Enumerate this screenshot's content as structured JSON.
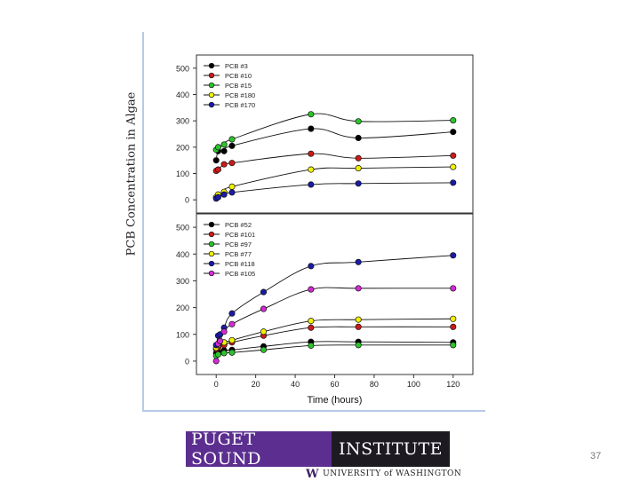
{
  "side_label": "PCB Concentration in Algae",
  "footer": {
    "banner_part1": "PUGET SOUND",
    "banner_part2": "INSTITUTE",
    "university_mark": "W",
    "university_name": "UNIVERSITY of WASHINGTON"
  },
  "page_number": "37",
  "chart_data": [
    {
      "type": "line",
      "xlabel": "",
      "ylabel": "",
      "xlim": [
        -10,
        130
      ],
      "ylim": [
        -50,
        550
      ],
      "yticks": [
        0,
        100,
        200,
        300,
        400,
        500
      ],
      "ytick_labels": [
        "0",
        "100",
        "200",
        "300",
        "400",
        "500"
      ],
      "legend_position": "top-left",
      "series": [
        {
          "name": "PCB #3",
          "color": "#000000",
          "x": [
            0,
            1,
            4,
            8,
            48,
            72,
            120
          ],
          "y": [
            150,
            185,
            185,
            205,
            270,
            235,
            258
          ]
        },
        {
          "name": "PCB #10",
          "color": "#cc1a1a",
          "x": [
            0,
            1,
            4,
            8,
            48,
            72,
            120
          ],
          "y": [
            110,
            115,
            135,
            140,
            175,
            158,
            168
          ]
        },
        {
          "name": "PCB #15",
          "color": "#2bc42b",
          "x": [
            0,
            1,
            4,
            8,
            48,
            72,
            120
          ],
          "y": [
            190,
            200,
            210,
            230,
            325,
            298,
            302
          ]
        },
        {
          "name": "PCB #180",
          "color": "#f2f200",
          "x": [
            0,
            1,
            4,
            8,
            48,
            72,
            120
          ],
          "y": [
            10,
            20,
            30,
            50,
            115,
            120,
            125
          ]
        },
        {
          "name": "PCB #170",
          "color": "#1a1aa6",
          "x": [
            0,
            1,
            4,
            8,
            48,
            72,
            120
          ],
          "y": [
            5,
            10,
            20,
            28,
            58,
            62,
            65
          ]
        }
      ]
    },
    {
      "type": "line",
      "xlabel": "Time (hours)",
      "ylabel": "",
      "xlim": [
        -10,
        130
      ],
      "ylim": [
        -50,
        550
      ],
      "xticks": [
        0,
        20,
        40,
        60,
        80,
        100,
        120
      ],
      "xtick_labels": [
        "0",
        "20",
        "40",
        "60",
        "80",
        "100",
        "120"
      ],
      "yticks": [
        0,
        100,
        200,
        300,
        400,
        500
      ],
      "ytick_labels": [
        "0",
        "100",
        "200",
        "300",
        "400",
        "500"
      ],
      "legend_position": "top-left",
      "series": [
        {
          "name": "PCB #52",
          "color": "#000000",
          "x": [
            0,
            1,
            4,
            8,
            24,
            48,
            72,
            120
          ],
          "y": [
            30,
            35,
            40,
            42,
            55,
            72,
            72,
            70
          ]
        },
        {
          "name": "PCB #101",
          "color": "#cc1a1a",
          "x": [
            0,
            1,
            4,
            8,
            24,
            48,
            72,
            120
          ],
          "y": [
            45,
            50,
            60,
            70,
            95,
            125,
            128,
            128
          ]
        },
        {
          "name": "PCB #97",
          "color": "#2bc42b",
          "x": [
            0,
            1,
            4,
            8,
            24,
            48,
            72,
            120
          ],
          "y": [
            20,
            25,
            30,
            32,
            42,
            58,
            60,
            60
          ]
        },
        {
          "name": "PCB #77",
          "color": "#f2f200",
          "x": [
            0,
            1,
            4,
            8,
            24,
            48,
            72,
            120
          ],
          "y": [
            50,
            60,
            70,
            78,
            110,
            150,
            155,
            158
          ]
        },
        {
          "name": "PCB #118",
          "color": "#1a1aa6",
          "x": [
            0,
            1,
            2,
            4,
            8,
            24,
            48,
            72,
            120
          ],
          "y": [
            60,
            95,
            100,
            125,
            178,
            258,
            355,
            370,
            395
          ]
        },
        {
          "name": "PCB #105",
          "color": "#d42ad4",
          "x": [
            0,
            1,
            2,
            4,
            8,
            24,
            48,
            72,
            120
          ],
          "y": [
            0,
            65,
            75,
            110,
            138,
            195,
            268,
            272,
            272
          ]
        }
      ]
    }
  ]
}
